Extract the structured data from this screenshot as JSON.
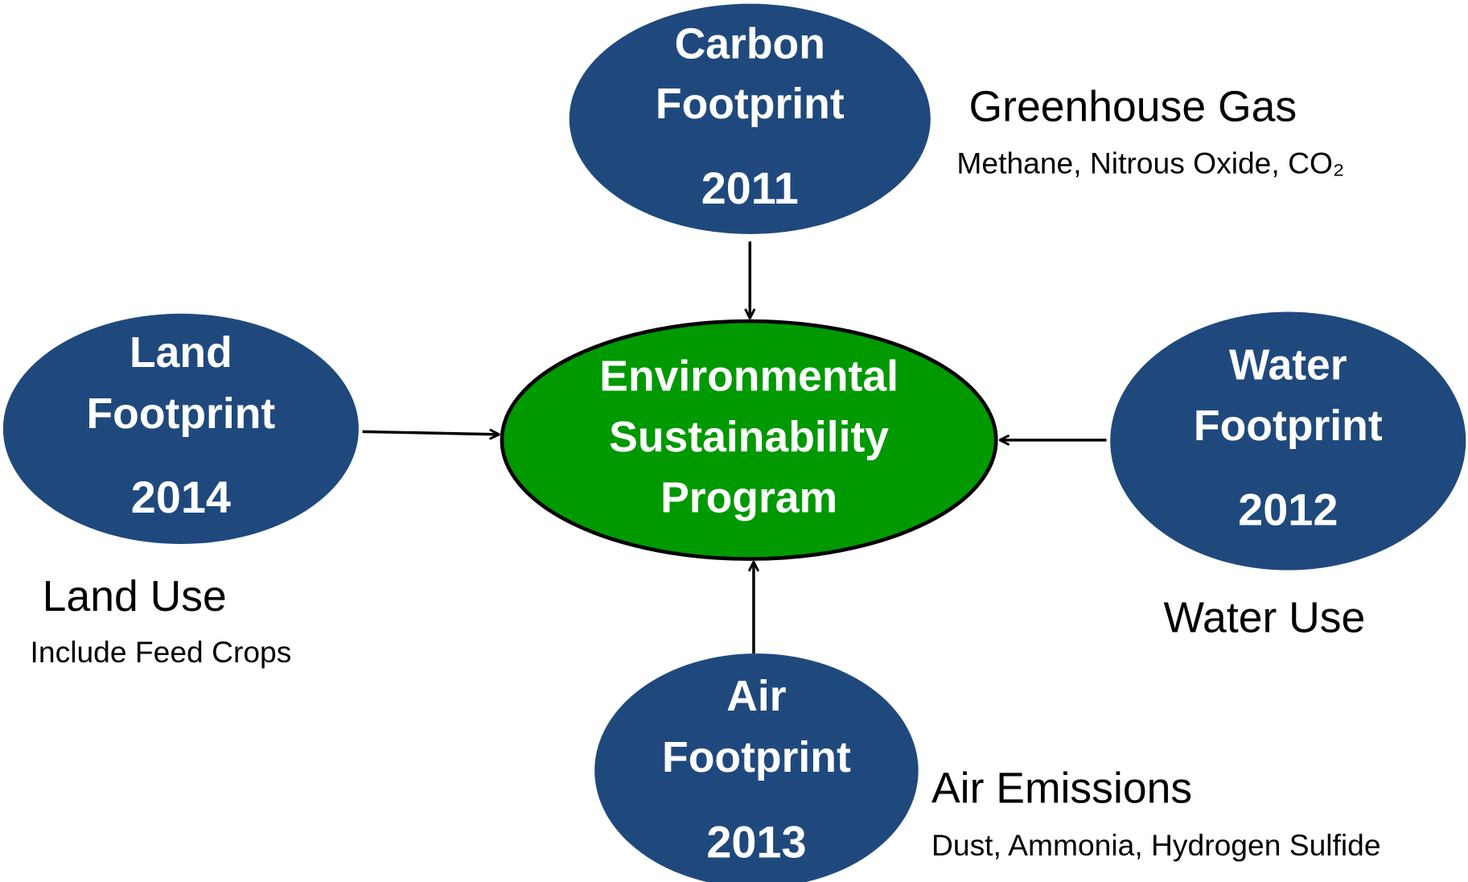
{
  "center": {
    "lines": [
      "Environmental",
      "Sustainability",
      "Program"
    ]
  },
  "nodes": [
    {
      "lines": [
        "Carbon",
        "Footprint"
      ],
      "year": "2011",
      "caption": "Greenhouse Gas",
      "detail": "Methane, Nitrous Oxide, CO₂"
    },
    {
      "lines": [
        "Land",
        "Footprint"
      ],
      "year": "2014",
      "caption": "Land Use",
      "detail": "Include Feed Crops"
    },
    {
      "lines": [
        "Water",
        "Footprint"
      ],
      "year": "2012",
      "caption": "Water Use"
    },
    {
      "lines": [
        "Air",
        "Footprint"
      ],
      "year": "2013",
      "caption": "Air Emissions",
      "detail": "Dust, Ammonia, Hydrogen Sulfide"
    }
  ]
}
